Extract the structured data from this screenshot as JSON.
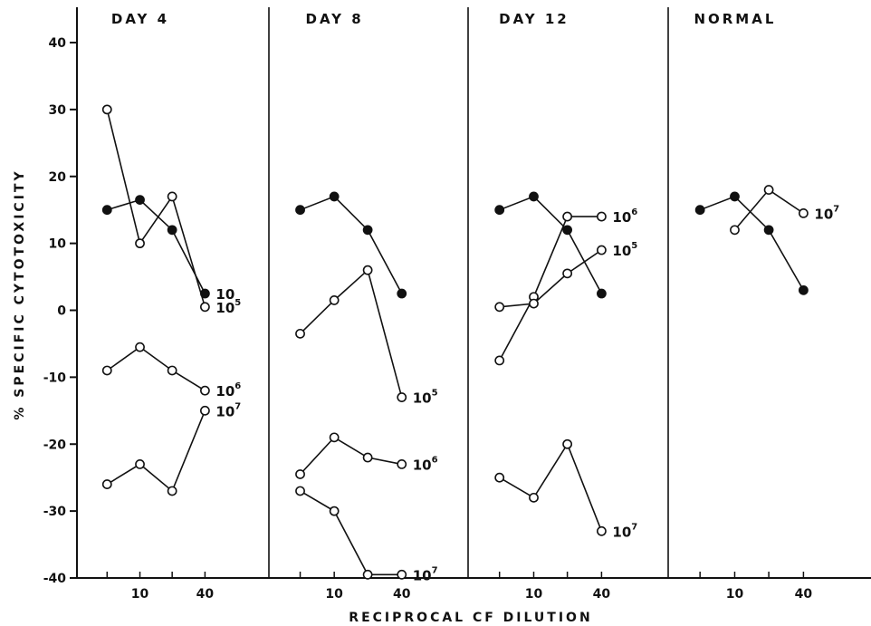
{
  "chart_data": {
    "type": "line",
    "ylabel": "% SPECIFIC CYTOTOXICITY",
    "xlabel": "RECIPROCAL CF DILUTION",
    "ylim": [
      -40,
      45
    ],
    "yticks": [
      40,
      30,
      20,
      10,
      0,
      -10,
      -20,
      -30,
      -40
    ],
    "ytick_labels": [
      "40",
      "30",
      "20",
      "10",
      "0",
      "-10",
      "-20",
      "-30",
      "-40"
    ],
    "x_positions": [
      5,
      10,
      20,
      40
    ],
    "xtick_labels": [
      "",
      "10",
      "",
      "40"
    ],
    "panels": [
      {
        "title": "DAY 4",
        "series": [
          {
            "label_base": "10",
            "label_exp": "",
            "marker": "filled",
            "x": [
              5,
              10,
              20,
              40
            ],
            "y": [
              15,
              16.5,
              12,
              2.5
            ]
          },
          {
            "label_base": "10",
            "label_exp": "5",
            "marker": "open",
            "x": [
              5,
              10,
              20,
              40
            ],
            "y": [
              30,
              10,
              17,
              0.5
            ]
          },
          {
            "label_base": "10",
            "label_exp": "6",
            "marker": "open",
            "x": [
              5,
              10,
              20,
              40
            ],
            "y": [
              -9,
              -5.5,
              -9,
              -12
            ]
          },
          {
            "label_base": "10",
            "label_exp": "7",
            "marker": "open",
            "x": [
              5,
              10,
              20,
              40
            ],
            "y": [
              -26,
              -23,
              -27,
              -15
            ]
          }
        ]
      },
      {
        "title": "DAY 8",
        "series": [
          {
            "label_base": "",
            "label_exp": "",
            "marker": "filled",
            "x": [
              5,
              10,
              20,
              40
            ],
            "y": [
              15,
              17,
              12,
              2.5
            ]
          },
          {
            "label_base": "10",
            "label_exp": "5",
            "marker": "open",
            "x": [
              5,
              10,
              20,
              40
            ],
            "y": [
              -3.5,
              1.5,
              6,
              -13
            ]
          },
          {
            "label_base": "10",
            "label_exp": "6",
            "marker": "open",
            "x": [
              5,
              10,
              20,
              40
            ],
            "y": [
              -24.5,
              -19,
              -22,
              -23
            ]
          },
          {
            "label_base": "10",
            "label_exp": "7",
            "marker": "open",
            "x": [
              5,
              10,
              20,
              40
            ],
            "y": [
              -27,
              -30,
              -39.5,
              -39.5
            ]
          }
        ]
      },
      {
        "title": "DAY 12",
        "series": [
          {
            "label_base": "",
            "label_exp": "",
            "marker": "filled",
            "x": [
              5,
              10,
              20,
              40
            ],
            "y": [
              15,
              17,
              12,
              2.5
            ]
          },
          {
            "label_base": "10",
            "label_exp": "6",
            "marker": "open",
            "x": [
              5,
              10,
              20,
              40
            ],
            "y": [
              -7.5,
              2,
              14,
              14
            ]
          },
          {
            "label_base": "10",
            "label_exp": "5",
            "marker": "open",
            "x": [
              5,
              10,
              20,
              40
            ],
            "y": [
              0.5,
              1,
              5.5,
              9
            ]
          },
          {
            "label_base": "10",
            "label_exp": "7",
            "marker": "open",
            "x": [
              5,
              10,
              20,
              40
            ],
            "y": [
              -25,
              -28,
              -20,
              -33
            ]
          }
        ]
      },
      {
        "title": "NORMAL",
        "series": [
          {
            "label_base": "",
            "label_exp": "",
            "marker": "filled",
            "x": [
              5,
              10,
              20,
              40
            ],
            "y": [
              15,
              17,
              12,
              3
            ]
          },
          {
            "label_base": "10",
            "label_exp": "7",
            "marker": "open",
            "x": [
              10,
              20,
              40
            ],
            "y": [
              12,
              18,
              14.5
            ]
          }
        ]
      }
    ]
  }
}
